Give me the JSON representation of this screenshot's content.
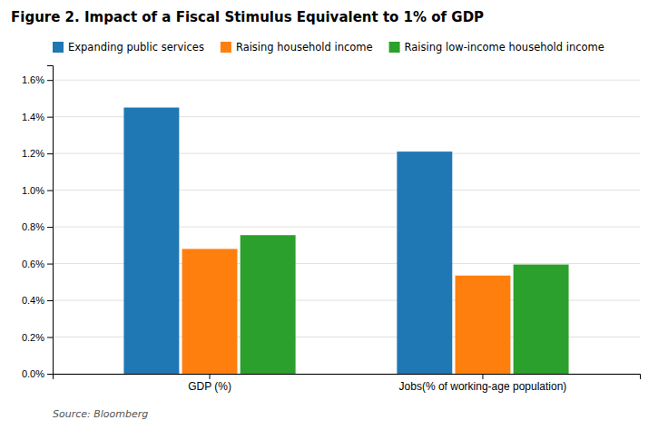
{
  "chart_data": {
    "type": "bar",
    "title": "Figure 2. Impact of a Fiscal Stimulus Equivalent to 1% of GDP",
    "annotations": [
      "Source: Bloomberg"
    ],
    "categories": [
      "GDP (%)",
      "Jobs(% of working-age population)"
    ],
    "series": [
      {
        "name": "Expanding public services",
        "values": [
          1.45,
          1.21
        ]
      },
      {
        "name": "Raising household income",
        "values": [
          0.68,
          0.535
        ]
      },
      {
        "name": "Raising low-income household income",
        "values": [
          0.755,
          0.595
        ]
      }
    ],
    "ylim": [
      0,
      1.68
    ],
    "yticks": [
      {
        "value": 0.0,
        "label": "0.0%"
      },
      {
        "value": 0.2,
        "label": "0.2%"
      },
      {
        "value": 0.4,
        "label": "0.4%"
      },
      {
        "value": 0.6,
        "label": "0.6%"
      },
      {
        "value": 0.8,
        "label": "0.8%"
      },
      {
        "value": 1.0,
        "label": "1.0%"
      },
      {
        "value": 1.2,
        "label": "1.2%"
      },
      {
        "value": 1.4,
        "label": "1.4%"
      },
      {
        "value": 1.6,
        "label": "1.6%"
      }
    ],
    "grid": true,
    "legend": "top-left"
  }
}
